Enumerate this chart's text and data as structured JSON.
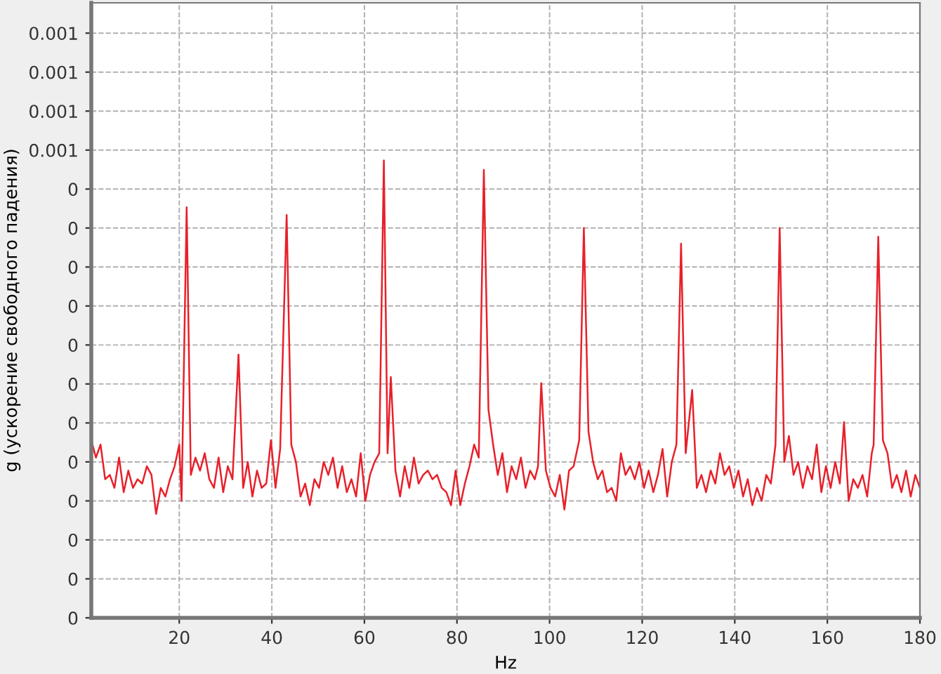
{
  "chart_data": {
    "type": "line",
    "xlabel": "Hz",
    "ylabel": "g (ускорение свободного падения)",
    "xlim": [
      1,
      180
    ],
    "xticks": [
      20,
      40,
      60,
      80,
      100,
      120,
      140,
      160,
      180
    ],
    "ylim": [
      0,
      0.00071
    ],
    "yticks": [
      {
        "value": 0,
        "label": "0"
      },
      {
        "value": 4.5e-05,
        "label": "0"
      },
      {
        "value": 9e-05,
        "label": "0"
      },
      {
        "value": 0.000135,
        "label": "0"
      },
      {
        "value": 0.00018,
        "label": "0"
      },
      {
        "value": 0.000225,
        "label": "0"
      },
      {
        "value": 0.00027,
        "label": "0"
      },
      {
        "value": 0.000315,
        "label": "0"
      },
      {
        "value": 0.00036,
        "label": "0"
      },
      {
        "value": 0.000405,
        "label": "0"
      },
      {
        "value": 0.00045,
        "label": "0"
      },
      {
        "value": 0.000495,
        "label": "0"
      },
      {
        "value": 0.00054,
        "label": "0.001"
      },
      {
        "value": 0.000585,
        "label": "0.001"
      },
      {
        "value": 0.00063,
        "label": "0.001"
      },
      {
        "value": 0.000675,
        "label": "0.001"
      }
    ],
    "grid": true,
    "line_style": "solid",
    "marker": "none",
    "series": [
      {
        "color": "#e8202a",
        "x": [
          1,
          2,
          3,
          4,
          5,
          6,
          7,
          8,
          9,
          10,
          11,
          12,
          13,
          14,
          15,
          16,
          17,
          18,
          19,
          20,
          20.5,
          21.6,
          22.5,
          23.5,
          24.5,
          25.5,
          26.5,
          27.5,
          28.5,
          29.5,
          30.5,
          31.5,
          32.8,
          33.8,
          34.8,
          35.8,
          36.8,
          37.8,
          38.8,
          39.8,
          40.8,
          41.8,
          43.2,
          44.2,
          45.2,
          46.2,
          47.2,
          48.2,
          49.2,
          50.2,
          51.2,
          52.2,
          53.2,
          54.2,
          55.2,
          56.2,
          57.2,
          58.2,
          59.2,
          60.2,
          61.2,
          62.2,
          63.2,
          64.2,
          65.0,
          65.7,
          66.7,
          67.7,
          68.7,
          69.7,
          70.7,
          71.7,
          72.7,
          73.7,
          74.7,
          75.7,
          76.7,
          77.7,
          78.7,
          79.7,
          80.7,
          81.7,
          82.7,
          83.7,
          84.7,
          85.8,
          86.8,
          87.8,
          88.8,
          89.8,
          90.8,
          91.8,
          92.8,
          93.8,
          94.8,
          95.8,
          96.8,
          97.5,
          98.2,
          99.2,
          100.2,
          101.2,
          102.2,
          103.2,
          104.2,
          105.2,
          106.4,
          107.4,
          108.4,
          109.4,
          110.4,
          111.4,
          112.4,
          113.4,
          114.4,
          115.4,
          116.4,
          117.4,
          118.4,
          119.4,
          120.4,
          121.4,
          122.4,
          123.4,
          124.4,
          125.4,
          126.4,
          127.4,
          128.4,
          129.4,
          130.8,
          131.8,
          132.8,
          133.8,
          134.8,
          135.8,
          136.8,
          137.8,
          138.8,
          139.8,
          140.8,
          141.8,
          142.8,
          143.8,
          144.8,
          145.8,
          146.8,
          147.8,
          148.8,
          149.7,
          150.7,
          151.7,
          152.7,
          153.7,
          154.7,
          155.7,
          156.7,
          157.7,
          158.7,
          159.7,
          160.7,
          161.7,
          162.7,
          163.6,
          164.6,
          165.6,
          166.6,
          167.6,
          168.6,
          169.6,
          170.0,
          171.0,
          172.0,
          173.0,
          174.0,
          175.0,
          176.0,
          177.0,
          178.0,
          179.0,
          180.0
        ],
        "values": [
          0.000205,
          0.000185,
          0.0002,
          0.00016,
          0.000165,
          0.00015,
          0.000185,
          0.000145,
          0.00017,
          0.00015,
          0.00016,
          0.000155,
          0.000175,
          0.000165,
          0.00012,
          0.00015,
          0.00014,
          0.00016,
          0.000175,
          0.0002,
          0.000135,
          0.000474,
          0.000165,
          0.000185,
          0.00017,
          0.00019,
          0.00016,
          0.00015,
          0.000185,
          0.000145,
          0.000175,
          0.00016,
          0.000304,
          0.00015,
          0.00018,
          0.00014,
          0.00017,
          0.00015,
          0.000155,
          0.000205,
          0.00015,
          0.000195,
          0.000465,
          0.0002,
          0.00018,
          0.00014,
          0.000155,
          0.00013,
          0.00016,
          0.00015,
          0.00018,
          0.000165,
          0.000185,
          0.00015,
          0.000175,
          0.000145,
          0.00016,
          0.00014,
          0.00019,
          0.000135,
          0.000165,
          0.00018,
          0.00019,
          0.000528,
          0.00019,
          0.000278,
          0.00017,
          0.00014,
          0.000175,
          0.00015,
          0.000185,
          0.000155,
          0.000165,
          0.00017,
          0.00016,
          0.000165,
          0.00015,
          0.000145,
          0.00013,
          0.00017,
          0.00013,
          0.000155,
          0.000175,
          0.0002,
          0.000185,
          0.000517,
          0.00024,
          0.0002,
          0.000165,
          0.00019,
          0.000145,
          0.000175,
          0.00016,
          0.000185,
          0.00015,
          0.00017,
          0.00016,
          0.000175,
          0.000271,
          0.00017,
          0.00015,
          0.00014,
          0.000165,
          0.000125,
          0.00017,
          0.000175,
          0.000205,
          0.00045,
          0.000215,
          0.00018,
          0.00016,
          0.00017,
          0.000145,
          0.00015,
          0.000135,
          0.00019,
          0.000165,
          0.000175,
          0.00016,
          0.00018,
          0.00015,
          0.00017,
          0.000145,
          0.000165,
          0.000195,
          0.00014,
          0.00018,
          0.0002,
          0.000432,
          0.00019,
          0.000263,
          0.00015,
          0.000165,
          0.000145,
          0.00017,
          0.000155,
          0.00019,
          0.000165,
          0.000175,
          0.00015,
          0.00017,
          0.00014,
          0.00016,
          0.00013,
          0.00015,
          0.000135,
          0.000165,
          0.000155,
          0.0002,
          0.00045,
          0.00018,
          0.00021,
          0.000165,
          0.00018,
          0.00015,
          0.000175,
          0.00016,
          0.0002,
          0.000145,
          0.000175,
          0.00015,
          0.00018,
          0.000155,
          0.000226,
          0.000135,
          0.00016,
          0.00015,
          0.000165,
          0.00014,
          0.00019,
          0.0002,
          0.00044,
          0.000205,
          0.00019,
          0.00015,
          0.000165,
          0.000145,
          0.00017,
          0.00014,
          0.000165,
          0.00015
        ]
      }
    ]
  }
}
